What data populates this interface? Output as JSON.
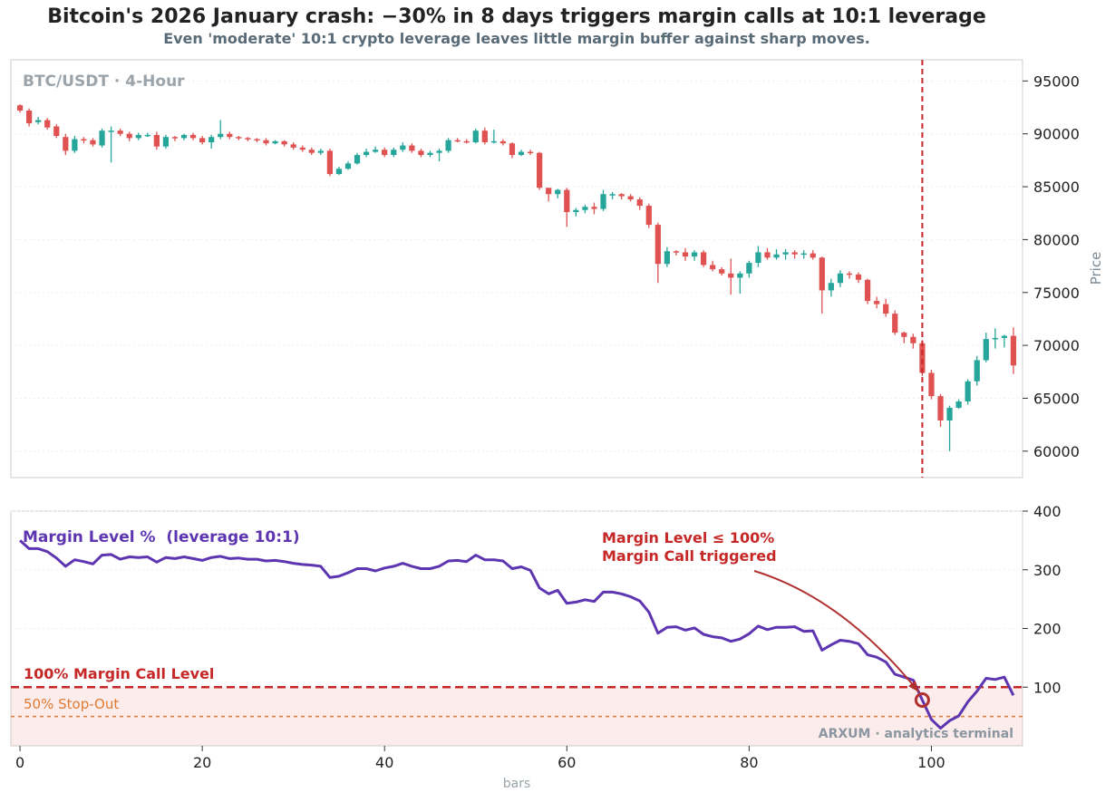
{
  "page": {
    "title": "Bitcoin's 2026 January crash: −30% in 8 days triggers margin calls at 10:1 leverage",
    "subtitle": "Even 'moderate' 10:1 crypto leverage leaves little margin buffer against sharp moves.",
    "watermark": "ARXUM · analytics terminal"
  },
  "colors": {
    "up": "#26a69a",
    "down": "#e05252",
    "margin_line": "#5e35b1",
    "margin_call": "#c62828",
    "stop_out": "#e07a30",
    "zone_fill": "#fdecec"
  },
  "chart_data": [
    {
      "type": "candlestick",
      "title": "BTC/USDT · 4-Hour",
      "ylabel": "Price",
      "xlim": [
        -1,
        110
      ],
      "ylim": [
        57500,
        97000
      ],
      "yticks": [
        60000,
        65000,
        70000,
        75000,
        80000,
        85000,
        90000,
        95000
      ],
      "grid": true,
      "event_marker_x": 99,
      "candles": [
        [
          92700,
          92200,
          92800,
          92000
        ],
        [
          92200,
          91000,
          92400,
          90700
        ],
        [
          91100,
          91300,
          91600,
          90900
        ],
        [
          91300,
          90600,
          91500,
          90400
        ],
        [
          90700,
          89800,
          90900,
          89600
        ],
        [
          89700,
          88400,
          90000,
          88000
        ],
        [
          88400,
          89500,
          89800,
          88200
        ],
        [
          89500,
          89400,
          89700,
          89100
        ],
        [
          89400,
          89000,
          89600,
          88800
        ],
        [
          88900,
          90300,
          90500,
          88700
        ],
        [
          90300,
          90300,
          90700,
          87300
        ],
        [
          90300,
          90000,
          90500,
          89800
        ],
        [
          90000,
          89600,
          90200,
          89300
        ],
        [
          89600,
          89900,
          90100,
          89400
        ],
        [
          89900,
          89900,
          90100,
          89700
        ],
        [
          89900,
          88800,
          90200,
          88500
        ],
        [
          88800,
          89700,
          89900,
          88600
        ],
        [
          89700,
          89600,
          89800,
          89300
        ],
        [
          89600,
          89900,
          90000,
          89400
        ],
        [
          89900,
          89600,
          90100,
          89400
        ],
        [
          89600,
          89200,
          89800,
          89000
        ],
        [
          89200,
          89700,
          89900,
          88600
        ],
        [
          89700,
          90000,
          91300,
          89500
        ],
        [
          90000,
          89700,
          90200,
          89500
        ],
        [
          89700,
          89600,
          89800,
          89400
        ],
        [
          89600,
          89500,
          89700,
          89300
        ],
        [
          89500,
          89400,
          89600,
          89200
        ],
        [
          89400,
          89100,
          89600,
          88900
        ],
        [
          89100,
          89300,
          89400,
          89000
        ],
        [
          89300,
          89000,
          89400,
          88800
        ],
        [
          89000,
          88700,
          89200,
          88500
        ],
        [
          88700,
          88500,
          88900,
          88300
        ],
        [
          88500,
          88200,
          88700,
          88000
        ],
        [
          88200,
          88400,
          88600,
          88000
        ],
        [
          88400,
          86200,
          88600,
          86000
        ],
        [
          86200,
          86700,
          86900,
          86100
        ],
        [
          86700,
          87200,
          87400,
          86600
        ],
        [
          87200,
          88000,
          88200,
          87100
        ],
        [
          88000,
          88300,
          88600,
          87800
        ],
        [
          88300,
          88500,
          88800,
          88200
        ],
        [
          88500,
          88000,
          88700,
          87800
        ],
        [
          88000,
          88500,
          88700,
          87800
        ],
        [
          88500,
          88900,
          89200,
          88300
        ],
        [
          88900,
          88400,
          89100,
          88200
        ],
        [
          88400,
          88000,
          88600,
          87800
        ],
        [
          88000,
          88200,
          88400,
          87800
        ],
        [
          88200,
          88400,
          88600,
          87400
        ],
        [
          88400,
          89400,
          89600,
          88200
        ],
        [
          89400,
          89300,
          89600,
          89200
        ],
        [
          89300,
          89200,
          89500,
          89100
        ],
        [
          89200,
          90300,
          90500,
          89100
        ],
        [
          90300,
          89200,
          90600,
          89000
        ],
        [
          89200,
          89300,
          90400,
          89100
        ],
        [
          89300,
          89100,
          89500,
          88900
        ],
        [
          89100,
          88000,
          89200,
          87700
        ],
        [
          88000,
          88300,
          88500,
          87900
        ],
        [
          88300,
          88200,
          88500,
          88000
        ],
        [
          88200,
          84900,
          88300,
          84700
        ],
        [
          84900,
          84300,
          84800,
          83600
        ],
        [
          84300,
          84700,
          84800,
          83900
        ],
        [
          84700,
          82600,
          84900,
          81200
        ],
        [
          82600,
          82800,
          83000,
          82200
        ],
        [
          82800,
          83100,
          83300,
          82500
        ],
        [
          83100,
          82900,
          83500,
          82400
        ],
        [
          82900,
          84300,
          84700,
          82700
        ],
        [
          84300,
          84300,
          84500,
          83800
        ],
        [
          84300,
          84100,
          84400,
          83800
        ],
        [
          84100,
          83800,
          84300,
          83600
        ],
        [
          83800,
          83200,
          84000,
          82800
        ],
        [
          83200,
          81400,
          83400,
          81100
        ],
        [
          81400,
          77700,
          81600,
          75900
        ],
        [
          77700,
          78900,
          79300,
          77400
        ],
        [
          78900,
          78800,
          79000,
          78500
        ],
        [
          78800,
          78400,
          79200,
          78000
        ],
        [
          78400,
          78800,
          79000,
          78000
        ],
        [
          78800,
          77600,
          79000,
          77400
        ],
        [
          77600,
          77200,
          78000,
          77000
        ],
        [
          77200,
          76800,
          77400,
          76600
        ],
        [
          76800,
          76400,
          78200,
          74800
        ],
        [
          76400,
          76800,
          77000,
          74900
        ],
        [
          76800,
          77800,
          78000,
          76400
        ],
        [
          77800,
          78800,
          79400,
          77400
        ],
        [
          78800,
          78300,
          79200,
          78100
        ],
        [
          78300,
          78600,
          79100,
          78100
        ],
        [
          78600,
          78800,
          79100,
          78100
        ],
        [
          78800,
          78600,
          79000,
          78200
        ],
        [
          78600,
          78700,
          79000,
          78200
        ],
        [
          78700,
          78300,
          79000,
          78100
        ],
        [
          78300,
          75200,
          78400,
          73000
        ],
        [
          75200,
          75900,
          76300,
          74600
        ],
        [
          75900,
          76800,
          77100,
          75500
        ],
        [
          76800,
          76700,
          77000,
          76300
        ],
        [
          76700,
          76200,
          76900,
          75900
        ],
        [
          76200,
          74200,
          76300,
          73900
        ],
        [
          74200,
          73900,
          74600,
          73500
        ],
        [
          73900,
          73000,
          74400,
          72700
        ],
        [
          73000,
          71200,
          73300,
          71000
        ],
        [
          71200,
          70800,
          71300,
          70200
        ],
        [
          70800,
          70200,
          71100,
          69700
        ],
        [
          70200,
          67400,
          70500,
          67100
        ],
        [
          67400,
          65200,
          67700,
          64900
        ],
        [
          65200,
          62900,
          65400,
          62300
        ],
        [
          62900,
          64100,
          64300,
          60000
        ],
        [
          64100,
          64700,
          64900,
          64000
        ],
        [
          64700,
          66600,
          66800,
          64400
        ],
        [
          66600,
          68600,
          69000,
          66200
        ],
        [
          68600,
          70600,
          71200,
          68400
        ],
        [
          70600,
          70700,
          71600,
          69700
        ],
        [
          70700,
          70900,
          71000,
          69800
        ],
        [
          70900,
          68100,
          71700,
          67300
        ]
      ]
    },
    {
      "type": "line",
      "xlabel": "bars",
      "xlim": [
        -1,
        110
      ],
      "ylim": [
        0,
        400
      ],
      "yticks": [
        100,
        200,
        300,
        400
      ],
      "xticks": [
        0,
        20,
        40,
        60,
        80,
        100
      ],
      "grid": true,
      "series": [
        {
          "name": "Margin Level %  (leverage 10:1)",
          "values": [
            350,
            336,
            336,
            331,
            320,
            306,
            317,
            314,
            310,
            325,
            326,
            318,
            322,
            321,
            322,
            313,
            321,
            319,
            322,
            319,
            316,
            321,
            323,
            319,
            320,
            318,
            318,
            315,
            316,
            314,
            311,
            309,
            308,
            306,
            287,
            289,
            295,
            302,
            302,
            298,
            303,
            306,
            311,
            306,
            302,
            302,
            306,
            315,
            316,
            314,
            325,
            317,
            317,
            315,
            302,
            305,
            299,
            269,
            259,
            265,
            243,
            245,
            249,
            246,
            262,
            262,
            259,
            254,
            247,
            228,
            192,
            202,
            203,
            197,
            201,
            190,
            186,
            184,
            178,
            182,
            191,
            204,
            198,
            202,
            202,
            203,
            195,
            196,
            163,
            172,
            180,
            178,
            174,
            155,
            151,
            143,
            122,
            117,
            112,
            78,
            45,
            30,
            43,
            51,
            75,
            93,
            115,
            113,
            117,
            86
          ]
        }
      ],
      "reference_lines": [
        {
          "label": "100%  Margin Call Level",
          "value": 100
        },
        {
          "label": "50%  Stop-Out",
          "value": 50
        }
      ],
      "annotation": {
        "text_line1": "Margin Level ≤ 100%",
        "text_line2": "Margin Call triggered",
        "point_x": 99,
        "point_y": 78
      }
    }
  ]
}
